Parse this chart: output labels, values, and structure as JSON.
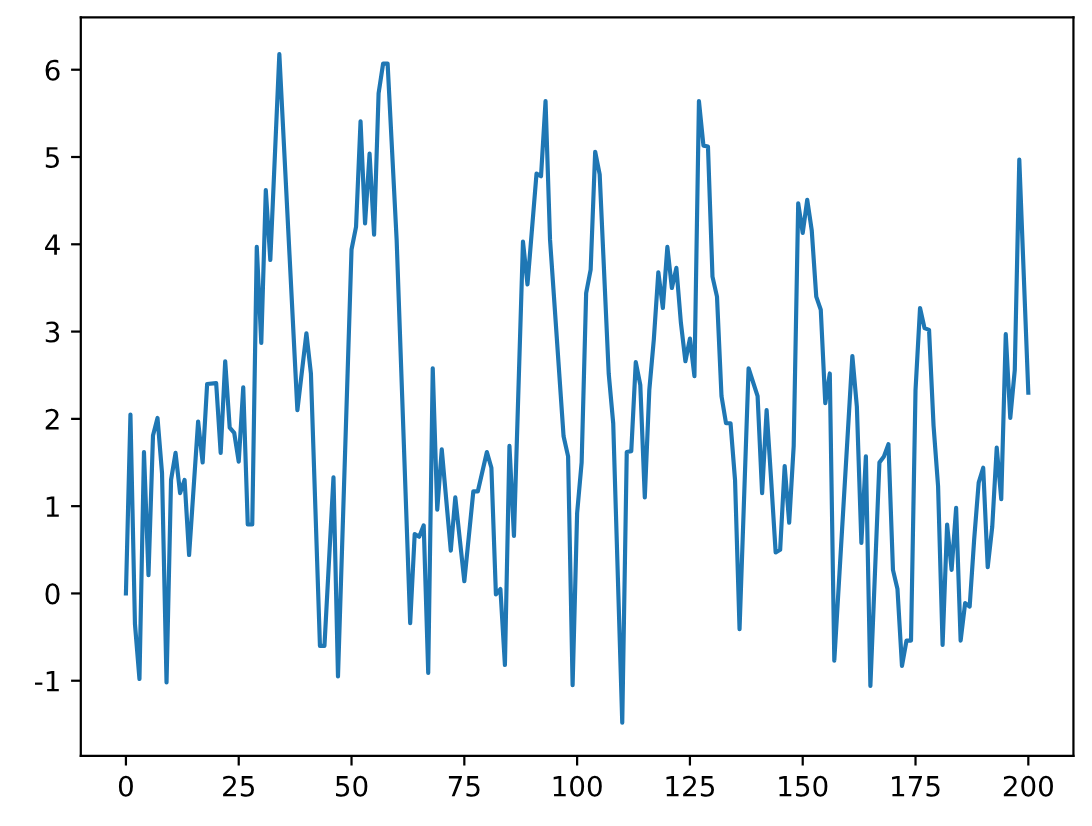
{
  "chart_data": {
    "type": "line",
    "x": [
      0,
      1,
      2,
      3,
      4,
      5,
      6,
      7,
      8,
      9,
      10,
      11,
      12,
      13,
      14,
      16,
      17,
      18,
      20,
      21,
      22,
      23,
      24,
      25,
      26,
      27,
      28,
      29,
      30,
      31,
      32,
      34,
      38,
      40,
      41,
      43,
      44,
      46,
      47,
      50,
      51,
      52,
      53,
      54,
      55,
      56,
      57,
      58,
      60,
      63,
      64,
      65,
      66,
      67,
      68,
      69,
      70,
      72,
      73,
      75,
      77,
      78,
      80,
      81,
      82,
      83,
      84,
      85,
      86,
      88,
      89,
      91,
      92,
      93,
      94,
      97,
      98,
      99,
      100,
      101,
      102,
      103,
      104,
      105,
      107,
      108,
      110,
      111,
      112,
      113,
      114,
      115,
      116,
      117,
      118,
      119,
      120,
      121,
      122,
      123,
      124,
      125,
      126,
      127,
      128,
      129,
      130,
      131,
      132,
      133,
      134,
      135,
      136,
      138,
      140,
      141,
      142,
      143,
      144,
      145,
      146,
      147,
      148,
      149,
      150,
      151,
      152,
      153,
      154,
      155,
      156,
      157,
      161,
      162,
      163,
      164,
      165,
      167,
      168,
      169,
      170,
      171,
      172,
      173,
      174,
      175,
      176,
      177,
      178,
      179,
      180,
      181,
      182,
      183,
      184,
      185,
      186,
      187,
      188,
      189,
      190,
      191,
      192,
      193,
      194,
      195,
      196,
      197,
      198,
      200
    ],
    "series": [
      {
        "color": "#1f77b4",
        "values": [
          0,
          2.05,
          -0.35,
          -0.98,
          1.62,
          0.21,
          1.81,
          2.01,
          1.38,
          -1.02,
          1.3,
          1.61,
          1.15,
          1.3,
          0.44,
          1.97,
          1.5,
          2.4,
          2.41,
          1.61,
          2.66,
          1.9,
          1.84,
          1.51,
          2.36,
          0.79,
          0.79,
          3.97,
          2.87,
          4.62,
          3.82,
          6.18,
          2.1,
          2.98,
          2.52,
          -0.6,
          -0.6,
          1.33,
          -0.95,
          3.94,
          4.2,
          5.41,
          4.24,
          5.04,
          4.11,
          5.73,
          6.07,
          6.07,
          4.05,
          -0.34,
          0.68,
          0.65,
          0.78,
          -0.91,
          2.58,
          0.96,
          1.65,
          0.49,
          1.1,
          0.14,
          1.17,
          1.17,
          1.62,
          1.44,
          -0.01,
          0.05,
          -0.82,
          1.69,
          0.66,
          4.03,
          3.54,
          4.81,
          4.78,
          5.64,
          4.05,
          1.8,
          1.57,
          -1.05,
          0.92,
          1.5,
          3.44,
          3.71,
          5.06,
          4.8,
          2.52,
          1.95,
          -1.48,
          1.62,
          1.63,
          2.65,
          2.39,
          1.1,
          2.33,
          2.91,
          3.68,
          3.27,
          3.97,
          3.5,
          3.73,
          3.1,
          2.66,
          2.92,
          2.49,
          5.64,
          5.13,
          5.12,
          3.63,
          3.4,
          2.26,
          1.95,
          1.95,
          1.3,
          -0.41,
          2.58,
          2.26,
          1.15,
          2.1,
          1.3,
          0.47,
          0.5,
          1.46,
          0.81,
          1.69,
          4.47,
          4.13,
          4.51,
          4.16,
          3.4,
          3.25,
          2.18,
          2.52,
          -0.77,
          2.72,
          2.14,
          0.58,
          1.57,
          -1.06,
          1.5,
          1.57,
          1.71,
          0.27,
          0.05,
          -0.83,
          -0.54,
          -0.54,
          2.33,
          3.27,
          3.04,
          3.02,
          1.92,
          1.23,
          -0.59,
          0.79,
          0.27,
          0.98,
          -0.54,
          -0.11,
          -0.15,
          0.62,
          1.27,
          1.44,
          0.3,
          0.76,
          1.67,
          1.08,
          2.97,
          2.01,
          2.56,
          4.97,
          2.3
        ]
      }
    ],
    "xlim": [
      -10,
      210
    ],
    "ylim": [
      -1.86,
      6.6
    ],
    "xticks": [
      0,
      25,
      50,
      75,
      100,
      125,
      150,
      175,
      200
    ],
    "yticks": [
      -1,
      0,
      1,
      2,
      3,
      4,
      5,
      6
    ]
  }
}
